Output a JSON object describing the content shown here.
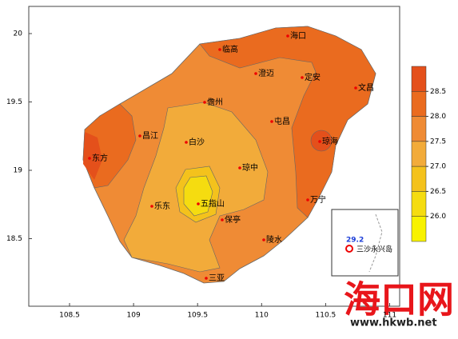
{
  "map": {
    "lat_ticks": [
      20,
      19.5,
      19,
      18.5
    ],
    "lon_ticks": [
      108.5,
      109,
      109.5,
      110,
      110.5,
      111
    ],
    "cities": [
      "海口",
      "临高",
      "澄迈",
      "定安",
      "文昌",
      "儋州",
      "屯昌",
      "昌江",
      "琼海",
      "白沙",
      "东方",
      "琼中",
      "万宁",
      "五指山",
      "乐东",
      "保亭",
      "陵水",
      "三亚"
    ],
    "colorbar": {
      "colors": [
        "#e4501b",
        "#ea6b1f",
        "#ef8b35",
        "#f2ab3a",
        "#f4c21c",
        "#f5dc10",
        "#f8f200"
      ],
      "ticks": [
        {
          "value": 28.5,
          "label": "28.5"
        },
        {
          "value": 28,
          "label": "28.0"
        },
        {
          "value": 27.5,
          "label": "27.5"
        },
        {
          "value": 27,
          "label": "27.0"
        },
        {
          "value": 26.5,
          "label": "26.5"
        },
        {
          "value": 26,
          "label": "26.0"
        }
      ]
    },
    "inset": {
      "value": 29.2,
      "label": "三沙永兴岛"
    },
    "watermark": {
      "title": "海口网",
      "url": "www.hkwb.net"
    }
  }
}
